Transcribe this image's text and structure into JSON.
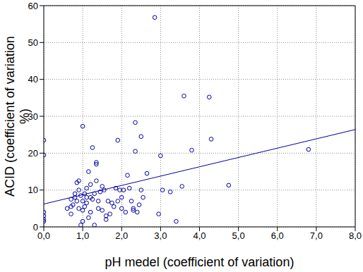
{
  "chart_data": {
    "type": "scatter",
    "x_label": "pH medel (coefficient of variation)",
    "y_label": "ACID (coefficient of variation %)",
    "xlim": [
      0,
      8
    ],
    "xticks": [
      {
        "value": 0,
        "label": "0,0"
      },
      {
        "value": 1,
        "label": "1,0"
      },
      {
        "value": 2,
        "label": "2,0"
      },
      {
        "value": 3,
        "label": "3,0"
      },
      {
        "value": 4,
        "label": "4,0"
      },
      {
        "value": 5,
        "label": "5,0"
      },
      {
        "value": 6,
        "label": "6,0"
      },
      {
        "value": 7,
        "label": "7,0"
      },
      {
        "value": 8,
        "label": "8,0"
      }
    ],
    "ylim": [
      0,
      60
    ],
    "yticks": [
      0,
      10,
      20,
      30,
      40,
      50,
      60
    ],
    "grid": true,
    "series": [
      {
        "type": "scatter",
        "marker": "open circle",
        "color": "#0000a0",
        "x": [
          0,
          0,
          0,
          0,
          0,
          0,
          0.6,
          0.7,
          0.7,
          0.7,
          0.75,
          0.8,
          0.8,
          0.85,
          0.85,
          0.9,
          0.9,
          0.9,
          0.95,
          0.95,
          1.0,
          1.0,
          1.0,
          1.0,
          1.05,
          1.05,
          1.1,
          1.1,
          1.1,
          1.15,
          1.15,
          1.2,
          1.2,
          1.2,
          1.25,
          1.25,
          1.3,
          1.3,
          1.35,
          1.35,
          1.35,
          1.4,
          1.4,
          1.45,
          1.5,
          1.5,
          1.55,
          1.6,
          1.6,
          1.65,
          1.7,
          1.75,
          1.8,
          1.85,
          1.9,
          1.9,
          1.95,
          2.0,
          2.0,
          2.05,
          2.1,
          2.15,
          2.2,
          2.25,
          2.3,
          2.3,
          2.35,
          2.35,
          2.4,
          2.45,
          2.5,
          2.5,
          2.55,
          2.65,
          2.85,
          2.95,
          3.0,
          3.05,
          3.25,
          3.4,
          3.55,
          3.6,
          3.8,
          4.25,
          4.3,
          4.75,
          6.8
        ],
        "values": [
          23.5,
          19.5,
          4,
          3,
          2,
          1.5,
          5,
          3.5,
          5.5,
          7.5,
          6,
          9,
          8,
          7,
          12,
          5,
          10,
          12.5,
          8.5,
          0.5,
          4.5,
          1.5,
          27.3,
          7,
          9,
          5.5,
          10.5,
          8,
          6.5,
          15,
          2.5,
          8,
          11.5,
          4,
          21.5,
          7.5,
          0.5,
          9,
          12.5,
          17.5,
          17,
          7,
          5,
          9.5,
          4.5,
          11,
          10,
          3,
          2,
          7,
          3.5,
          6.5,
          5.5,
          10.5,
          23.5,
          7,
          10,
          8,
          5,
          10,
          4,
          14,
          10.5,
          7,
          5,
          4.5,
          20.5,
          28.3,
          4,
          6,
          24.5,
          10,
          8,
          14.5,
          56.8,
          3.5,
          19.3,
          10,
          9.5,
          1.5,
          11,
          35.5,
          20.8,
          35.2,
          23.8,
          11.3,
          21
        ]
      },
      {
        "type": "line",
        "line_style": "solid",
        "color": "#0000a0",
        "x": [
          0,
          8
        ],
        "values": [
          6.2,
          26.4
        ]
      }
    ]
  }
}
